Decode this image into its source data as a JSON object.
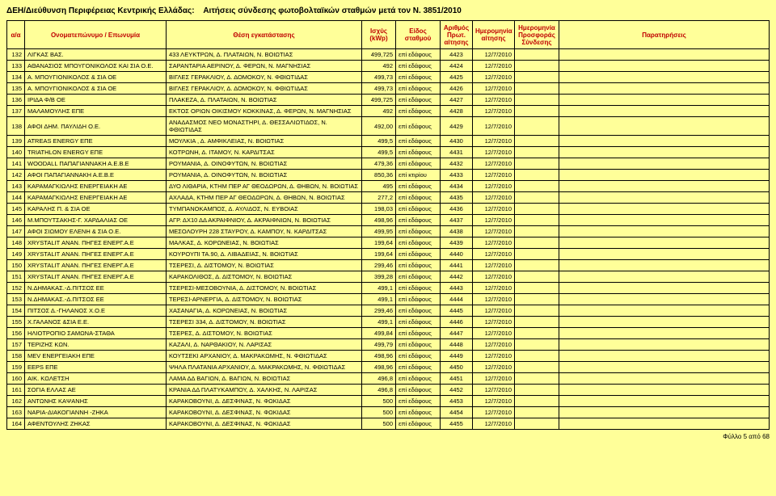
{
  "header": {
    "title_left": "ΔΕΗ/Διεύθυνση Περιφέρειας Κεντρικής Ελλάδας:",
    "title_right": "Αιτήσεις σύνδεσης φωτοβολταϊκών σταθμών μετά τον Ν. 3851/2010"
  },
  "columns": [
    "α/α",
    "Ονοματεπώνυμο / Επωνυμία",
    "Θέση εγκατάστασης",
    "Ισχύς (kWp)",
    "Είδος σταθμού",
    "Αριθμός Πρωτ. αίτησης",
    "Ημερομηνία αίτησης",
    "Ημερομηνία Προσφοράς Σύνδεσης",
    "Παρατηρήσεις"
  ],
  "rows": [
    [
      "132",
      "ΛΙΓΚΑΣ ΒΑΣ.",
      "433 ΛΕΥΚΤΡΩΝ, Δ. ΠΛΑΤΑΙΩΝ, Ν. ΒΟΙΩΤΙΑΣ",
      "499,725",
      "επί εδάφους",
      "4423",
      "12/7/2010",
      "",
      ""
    ],
    [
      "133",
      "ΑΘΑΝΑΣΙΟΣ ΜΠΟΥΓΟΝΙΚΟΛΟΣ ΚΑΙ ΣΙΑ Ο.Ε.",
      "ΣΑΡΑΝΤΑΡΙΑ ΑΕΡΙΝΟΥ, Δ. ΦΕΡΩΝ, Ν. ΜΑΓΝΗΣΙΑΣ",
      "492",
      "επί εδάφους",
      "4424",
      "12/7/2010",
      "",
      ""
    ],
    [
      "134",
      "Α. ΜΠΟΥΓΙΟΝΙΚΟΛΟΣ & ΣΙΑ ΟΕ",
      "ΒΙΓΛΕΣ ΓΕΡΑΚΛΙΟΥ, Δ. ΔΟΜΟΚΟΥ, Ν. ΦΘΙΩΤΙΔΑΣ",
      "499,73",
      "επί εδάφους",
      "4425",
      "12/7/2010",
      "",
      ""
    ],
    [
      "135",
      "Α. ΜΠΟΥΓΙΟΝΙΚΟΛΟΣ & ΣΙΑ ΟΕ",
      "ΒΙΓΛΕΣ ΓΕΡΑΚΛΙΟΥ, Δ. ΔΟΜΟΚΟΥ, Ν. ΦΘΙΩΤΙΔΑΣ",
      "499,73",
      "επί εδάφους",
      "4426",
      "12/7/2010",
      "",
      ""
    ],
    [
      "136",
      "ΙΡΙΔΑ Φ/Β ΟΕ",
      "ΠΛΑΚΕΖΑ, Δ. ΠΛΑΤΑΙΩΝ, Ν. ΒΟΙΩΤΙΑΣ",
      "499,725",
      "επί εδάφους",
      "4427",
      "12/7/2010",
      "",
      ""
    ],
    [
      "137",
      "ΜΑΛΑΜΟΥΛΗΣ ΕΠΕ",
      "ΕΚΤΟΣ ΟΡΙΩΝ ΟΙΚΙΣΜΟΥ ΚΟΚΚΙΝΑΣ, Δ. ΦΕΡΩΝ, Ν. ΜΑΓΝΗΣΙΑΣ",
      "492",
      "επί εδάφους",
      "4428",
      "12/7/2010",
      "",
      ""
    ],
    [
      "138",
      "ΑΦΟΙ ΔΗΜ. ΠΑΥΛΙΔΗ Ο.Ε.",
      "ΑΝΑΔΑΣΜΟΣ ΝΕΟ ΜΟΝΑΣΤΗΡΙ, Δ. ΘΕΣΣΑΛΙΩΤΙΔΟΣ, Ν. ΦΘΙΩΤΙΔΑΣ",
      "492,00",
      "επί εδάφους",
      "4429",
      "12/7/2010",
      "",
      ""
    ],
    [
      "139",
      "ATREAS ENERGY ΕΠΕ",
      "ΜΟΥΛΚΙΑ , Δ. ΑΜΦΙΚΛΕΙΑΣ, Ν. ΒΟΙΩΤΙΑΣ",
      "499,5",
      "επί εδάφους",
      "4430",
      "12/7/2010",
      "",
      ""
    ],
    [
      "140",
      "TRIATHLON ENERGY ΕΠΕ",
      "ΚΟΤΡΩΝΗ, Δ. ΙΤΑΜΟΥ, Ν. ΚΑΡΔΙΤΣΑΣ",
      "499,5",
      "επί εδάφους",
      "4431",
      "12/7/2010",
      "",
      ""
    ],
    [
      "141",
      "WOODALL ΠΑΠΑΓΙΑΝΝΑΚΗ Α.Ε.Β.Ε",
      "ΡΟΥΜΑΝΙΑ, Δ. ΟΙΝΟΦΥΤΩΝ, Ν. ΒΟΙΩΤΙΑΣ",
      "479,36",
      "επί εδάφους",
      "4432",
      "12/7/2010",
      "",
      ""
    ],
    [
      "142",
      "ΑΦΟΙ ΠΑΠΑΓΙΑΝΝΑΚΗ Α.Ε.Β.Ε",
      "ΡΟΥΜΑΝΙΑ, Δ. ΟΙΝΟΦΥΤΩΝ, Ν. ΒΟΙΩΤΙΑΣ",
      "850,36",
      "επί κτιρίου",
      "4433",
      "12/7/2010",
      "",
      ""
    ],
    [
      "143",
      "ΚΑΡΑΜΑΓΚΙΩΛΗΣ ΕΝΕΡΓΕΙΑΚΗ ΑΕ",
      "ΔΥΟ ΛΙΘΑΡΙΑ, ΚΤΗΜ ΠΕΡ ΑΓ ΘΕΟΔΩΡΩΝ, Δ. ΘΗΒΩΝ, Ν. ΒΟΙΩΤΙΑΣ",
      "495",
      "επί εδάφους",
      "4434",
      "12/7/2010",
      "",
      ""
    ],
    [
      "144",
      "ΚΑΡΑΜΑΓΚΙΩΛΗΣ ΕΝΕΡΓΕΙΑΚΗ ΑΕ",
      "ΑΧΛΑΔΑ, ΚΤΗΜ ΠΕΡ ΑΓ ΘΕΟΔΩΡΩΝ, Δ. ΘΗΒΩΝ, Ν. ΒΟΙΩΤΙΑΣ",
      "277,2",
      "επί εδάφους",
      "4435",
      "12/7/2010",
      "",
      ""
    ],
    [
      "145",
      "ΚΑΡΑΛΗΣ Π. & ΣΙΑ ΟΕ",
      "ΤΥΜΠΑΝΟΚΑΜΠΟΣ, Δ. ΑΥΛΙΔΟΣ, Ν. ΕΥΒΟΙΑΣ",
      "198,03",
      "επί εδάφους",
      "4436",
      "12/7/2010",
      "",
      ""
    ],
    [
      "146",
      "Μ.ΜΠΟΥΤΣΑΚΗΣ-Γ. ΧΑΡΔΑΛΙΑΣ ΟΕ",
      "ΑΓΡ. ΔΧ10 ΔΔ ΑΚΡΑΙΦΝΙΟΥ, Δ. ΑΚΡΑΙΦΝΙΩΝ, Ν. ΒΟΙΩΤΙΑΣ",
      "498,96",
      "επί εδάφους",
      "4437",
      "12/7/2010",
      "",
      ""
    ],
    [
      "147",
      "ΑΦΟΙ ΣΙΩΜΟΥ ΕΛΕΝΗ & ΣΙΑ Ο.Ε.",
      "ΜΕΣΟΛΟΥΡΗ 228 ΣΤΑΥΡΟΥ, Δ. ΚΑΜΠΟΥ, Ν. ΚΑΡΔΙΤΣΑΣ",
      "499,95",
      "επί εδάφους",
      "4438",
      "12/7/2010",
      "",
      ""
    ],
    [
      "148",
      "XRYSTALIT ΑΝΑΝ. ΠΗΓΕΣ ΕΝΕΡΓ.Α.Ε",
      "ΜΑΛΚΑΣ, Δ. ΚΟΡΩΝΕΙΑΣ, Ν. ΒΟΙΩΤΙΑΣ",
      "199,64",
      "επί εδάφους",
      "4439",
      "12/7/2010",
      "",
      ""
    ],
    [
      "149",
      "XRYSTALIT ΑΝΑΝ. ΠΗΓΕΣ ΕΝΕΡΓ.Α.Ε",
      "ΚΟΥΡΟΥΠΙ ΤΑ.90, Δ. ΛΙΒΑΔΕΙΑΣ, Ν. ΒΟΙΩΤΙΑΣ",
      "199,64",
      "επί εδάφους",
      "4440",
      "12/7/2010",
      "",
      ""
    ],
    [
      "150",
      "XRYSTALIT ΑΝΑΝ. ΠΗΓΕΣ ΕΝΕΡΓ.Α.Ε",
      "ΤΣΕΡΕΣΙ, Δ. ΔΙΣΤΟΜΟΥ, Ν. ΒΟΙΩΤΙΑΣ",
      "299,46",
      "επί εδάφους",
      "4441",
      "12/7/2010",
      "",
      ""
    ],
    [
      "151",
      "XRYSTALIT ΑΝΑΝ. ΠΗΓΕΣ ΕΝΕΡΓ.Α.Ε",
      "ΚΑΡΑΚΟΛΙΘΟΣ, Δ. ΔΙΣΤΟΜΟΥ, Ν. ΒΟΙΩΤΙΑΣ",
      "399,28",
      "επί εδάφους",
      "4442",
      "12/7/2010",
      "",
      ""
    ],
    [
      "152",
      "Ν.ΔΗΜΑΚΑΣ.-Δ.ΠΙΤΣΟΣ ΕΕ",
      "ΤΣΕΡΕΣΙ-ΜΕΣΟΒΟΥΝΙΑ, Δ. ΔΙΣΤΟΜΟΥ, Ν. ΒΟΙΩΤΙΑΣ",
      "499,1",
      "επί εδάφους",
      "4443",
      "12/7/2010",
      "",
      ""
    ],
    [
      "153",
      "Ν.ΔΗΜΑΚΑΣ.-Δ.ΠΙΤΣΟΣ ΕΕ",
      "ΤΕΡΕΣΙ-ΑΡΝΕΡΓΙΑ, Δ. ΔΙΣΤΟΜΟΥ, Ν. ΒΟΙΩΤΙΑΣ",
      "499,1",
      "επί εδάφους",
      "4444",
      "12/7/2010",
      "",
      ""
    ],
    [
      "154",
      "ΠΙΤΣΟΣ Δ.-ΓΗΛΑΝΟΣ Χ.Ο.Ε",
      "ΧΑΣΑΝΑΓΙΑ, Δ. ΚΟΡΩΝΕΙΑΣ, Ν. ΒΟΙΩΤΙΑΣ",
      "299,46",
      "επί εδάφους",
      "4445",
      "12/7/2010",
      "",
      ""
    ],
    [
      "155",
      "Χ.ΓΑΛΑΝΟΣ &ΣΙΑ Ε.Ε.",
      "ΤΣΕΡΕΣΙ 334, Δ. ΔΙΣΤΟΜΟΥ, Ν. ΒΟΙΩΤΙΑΣ",
      "499,1",
      "επί εδάφους",
      "4446",
      "12/7/2010",
      "",
      ""
    ],
    [
      "156",
      "ΗΛΙΟΤΡΟΠΙΟ ΣΑΜΩΝΑ-ΣΤΑΘΑ",
      "ΤΣΕΡΕΣ, Δ. ΔΙΣΤΟΜΟΥ, Ν. ΒΟΙΩΤΙΑΣ",
      "499,84",
      "επί εδάφους",
      "4447",
      "12/7/2010",
      "",
      ""
    ],
    [
      "157",
      "ΤΕΡΙΖΗΣ ΚΩΝ.",
      "ΚΑΖΑΛΙ, Δ. ΝΑΡΘΑΚΙΟΥ, Ν. ΛΑΡΙΣΑΣ",
      "499,79",
      "επί εδάφους",
      "4448",
      "12/7/2010",
      "",
      ""
    ],
    [
      "158",
      "MEV ΕΝΕΡΓΕΙΑΚΗ ΕΠΕ",
      "ΚΟΥΤΣΕΚΙ ΑΡΧΑΝΙΟΥ, Δ. ΜΑΚΡΑΚΩΜΗΣ, Ν. ΦΘΙΩΤΙΔΑΣ",
      "498,96",
      "επί εδάφους",
      "4449",
      "12/7/2010",
      "",
      ""
    ],
    [
      "159",
      "EEPS ΕΠΕ",
      "ΨΗΛΑ ΠΛΑΤΑΝΙΑ ΑΡΧΑΝΙΟΥ, Δ. ΜΑΚΡΑΚΩΜΗΣ, Ν. ΦΘΙΩΤΙΔΑΣ",
      "498,96",
      "επί εδάφους",
      "4450",
      "12/7/2010",
      "",
      ""
    ],
    [
      "160",
      "ΑΙΚ. ΚΩΛΕΤΣΗ",
      "ΛΑΜΑ ΔΔ ΒΑΓΙΩΝ, Δ. ΒΑΓΙΩΝ, Ν. ΒΟΙΩΤΙΑΣ",
      "496,8",
      "επί εδάφους",
      "4451",
      "12/7/2010",
      "",
      ""
    ],
    [
      "161",
      "ΣΟΓΙΑ ΕΛΛΑΣ ΑΕ",
      "ΚΡΑΝΙΑ ΔΔ ΠΛΑΤΥΚΑΜΠΟΥ, Δ. ΧΑΛΚΗΣ, Ν. ΛΑΡΙΣΑΣ",
      "496,8",
      "επί εδάφους",
      "4452",
      "12/7/2010",
      "",
      ""
    ],
    [
      "162",
      "ΑΝΤΩΝΗΣ ΚΑΨΑΝΗΣ",
      "ΚΑΡΑΚΟΒΟΥΝΙ, Δ. ΔΕΣΦΙΝΑΣ, Ν. ΦΩΚΙΔΑΣ",
      "500",
      "επί εδάφους",
      "4453",
      "12/7/2010",
      "",
      ""
    ],
    [
      "163",
      "ΝΑΡΙΑ-ΔΙΑΚΟΓΙΑΝΝΗ -ΖΗΚΑ",
      "ΚΑΡΑΚΟΒΟΥΝΙ, Δ. ΔΕΣΦΙΝΑΣ, Ν. ΦΩΚΙΔΑΣ",
      "500",
      "επί εδάφους",
      "4454",
      "12/7/2010",
      "",
      ""
    ],
    [
      "164",
      "ΑΦΕΝΤΟΥΛΗΣ ΖΗΚΑΣ",
      "ΚΑΡΑΚΟΒΟΥΝΙ, Δ. ΔΕΣΦΙΝΑΣ, Ν. ΦΩΚΙΔΑΣ",
      "500",
      "επί εδάφους",
      "4455",
      "12/7/2010",
      "",
      ""
    ]
  ],
  "footer": "Φύλλο 5 από 68"
}
